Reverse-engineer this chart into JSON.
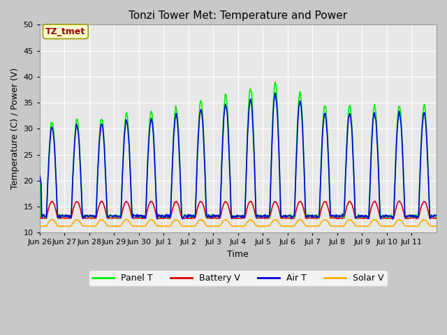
{
  "title": "Tonzi Tower Met: Temperature and Power",
  "xlabel": "Time",
  "ylabel": "Temperature (C) / Power (V)",
  "ylim": [
    10,
    50
  ],
  "yticks": [
    10,
    15,
    20,
    25,
    30,
    35,
    40,
    45,
    50
  ],
  "legend_labels": [
    "Panel T",
    "Battery V",
    "Air T",
    "Solar V"
  ],
  "legend_colors": [
    "#00ee00",
    "#dd0000",
    "#0000dd",
    "#ffaa00"
  ],
  "line_colors": {
    "panel_t": "#00ee00",
    "battery_v": "#dd0000",
    "air_t": "#0000dd",
    "solar_v": "#ffaa00"
  },
  "annotation_text": "TZ_tmet",
  "annotation_bg": "#ffffcc",
  "annotation_fg": "#990000",
  "fig_bg": "#c8c8c8",
  "plot_bg": "#e8e8e8",
  "n_days": 16,
  "tick_labels": [
    "Jun 26",
    "Jun 27",
    "Jun 28",
    "Jun 29",
    "Jun 30",
    "Jul 1",
    "Jul 2",
    "Jul 3",
    "Jul 4",
    "Jul 5",
    "Jul 6",
    "Jul 7",
    "Jul 8",
    "Jul 9",
    "Jul 10",
    "Jul 11"
  ],
  "tick_positions": [
    0,
    1,
    2,
    3,
    4,
    5,
    6,
    7,
    8,
    9,
    10,
    11,
    12,
    13,
    14,
    15
  ]
}
